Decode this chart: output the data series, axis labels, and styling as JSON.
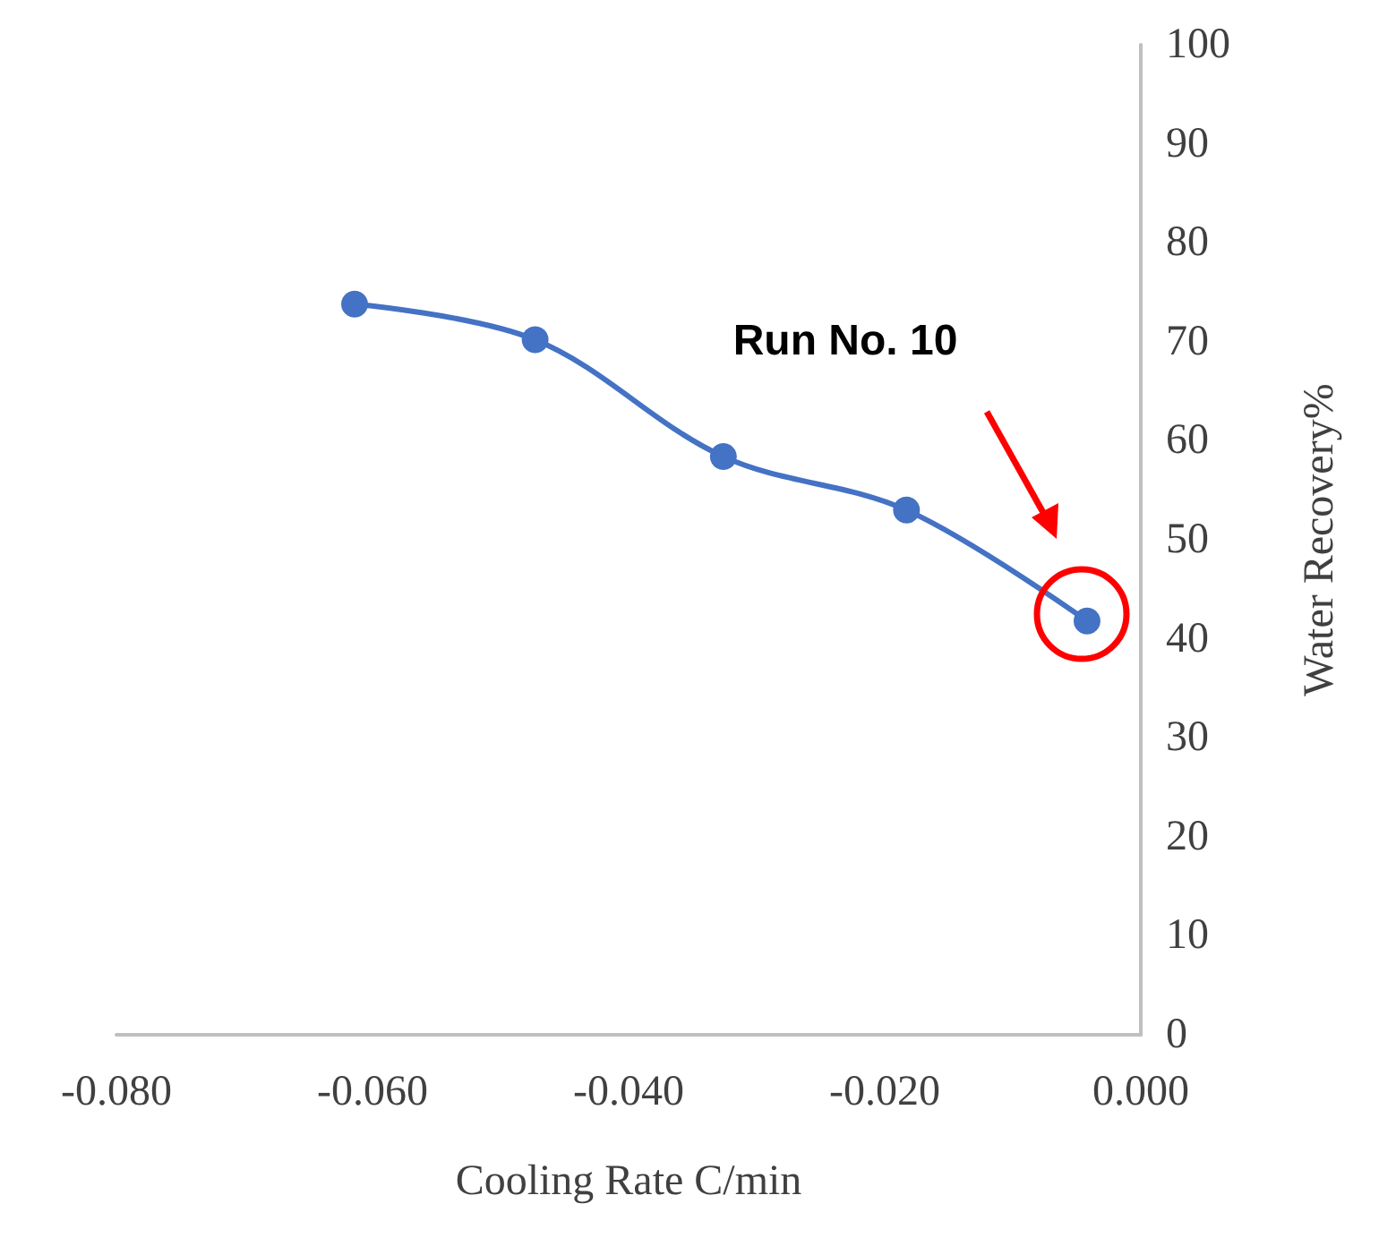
{
  "chart_data": {
    "type": "line",
    "xlabel": "Cooling Rate C/min",
    "ylabel": "Water Recovery%",
    "x": [
      -0.0614,
      -0.0473,
      -0.0326,
      -0.0183,
      -0.0042
    ],
    "series": [
      {
        "color": "#4472c4",
        "values": [
          73.8,
          70.2,
          58.4,
          53.0,
          41.8
        ]
      }
    ],
    "xlim": [
      -0.08,
      0
    ],
    "xticks": [
      {
        "value": -0.08,
        "label": "-0.080"
      },
      {
        "value": -0.06,
        "label": "-0.060"
      },
      {
        "value": -0.04,
        "label": "-0.040"
      },
      {
        "value": -0.02,
        "label": "-0.020"
      },
      {
        "value": 0,
        "label": "0.000"
      }
    ],
    "ylim": [
      0,
      100
    ],
    "yticks": [
      0,
      10,
      20,
      30,
      40,
      50,
      60,
      70,
      80,
      90,
      100
    ],
    "annotations": [
      "Run No. 10"
    ],
    "marker": "circle",
    "line_style": "solid",
    "grid": false,
    "legend": false
  }
}
